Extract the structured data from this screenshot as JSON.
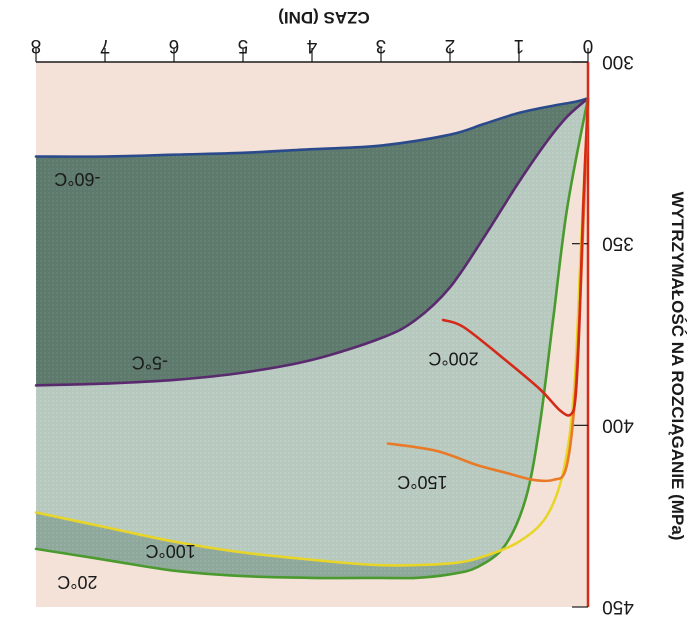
{
  "chart_data": {
    "type": "line",
    "orientation": "rotated-180",
    "xlabel": "CZAS (DNI)",
    "ylabel": "WYTRZYMAŁOŚĆ NA ROZCIĄGANIE (MPa)",
    "xlim": [
      0,
      8
    ],
    "ylim": [
      300,
      450
    ],
    "x_ticks": [
      "0",
      "1",
      "2",
      "3",
      "4",
      "5",
      "6",
      "7",
      "8"
    ],
    "y_ticks": [
      "300",
      "350",
      "400",
      "450"
    ],
    "series": [
      {
        "name": "-60°C",
        "color": "#2b4a8c",
        "points": [
          [
            0,
            310
          ],
          [
            0.2,
            311
          ],
          [
            0.5,
            312
          ],
          [
            1,
            314
          ],
          [
            1.5,
            317
          ],
          [
            2,
            320
          ],
          [
            3,
            323
          ],
          [
            4,
            324
          ],
          [
            5,
            325
          ],
          [
            6,
            325.5
          ],
          [
            7,
            326
          ],
          [
            8,
            326
          ]
        ]
      },
      {
        "name": "-5°C",
        "color": "#5a2a6e",
        "points": [
          [
            0,
            310
          ],
          [
            0.3,
            315
          ],
          [
            0.6,
            322
          ],
          [
            1,
            333
          ],
          [
            1.5,
            348
          ],
          [
            2,
            362
          ],
          [
            2.5,
            371
          ],
          [
            3,
            376
          ],
          [
            4,
            382
          ],
          [
            5,
            385.5
          ],
          [
            6,
            387.5
          ],
          [
            7,
            388.5
          ],
          [
            8,
            389
          ]
        ]
      },
      {
        "name": "200°C",
        "color": "#d42a1a",
        "points": [
          [
            0,
            310
          ],
          [
            0.07,
            340
          ],
          [
            0.12,
            370
          ],
          [
            0.18,
            392
          ],
          [
            0.25,
            397
          ],
          [
            0.4,
            396
          ],
          [
            0.7,
            390
          ],
          [
            1.2,
            382
          ],
          [
            1.8,
            373
          ],
          [
            2.1,
            371
          ]
        ]
      },
      {
        "name": "150°C",
        "color": "#e87a28",
        "points": [
          [
            0,
            310
          ],
          [
            0.1,
            360
          ],
          [
            0.2,
            395
          ],
          [
            0.32,
            412
          ],
          [
            0.5,
            415
          ],
          [
            0.8,
            415
          ],
          [
            1.2,
            413
          ],
          [
            1.6,
            411
          ],
          [
            2.2,
            407
          ],
          [
            2.9,
            405
          ]
        ]
      },
      {
        "name": "100°C",
        "color": "#e8d52a",
        "points": [
          [
            0,
            310
          ],
          [
            0.1,
            350
          ],
          [
            0.2,
            390
          ],
          [
            0.35,
            412
          ],
          [
            0.6,
            425
          ],
          [
            1,
            432
          ],
          [
            1.5,
            436
          ],
          [
            2,
            438
          ],
          [
            3,
            438.5
          ],
          [
            4,
            437
          ],
          [
            5,
            435
          ],
          [
            6,
            432
          ],
          [
            7,
            428
          ],
          [
            8,
            424
          ]
        ]
      },
      {
        "name": "20°C",
        "color": "#4a9a2e",
        "points": [
          [
            0,
            310
          ],
          [
            0.3,
            340
          ],
          [
            0.5,
            370
          ],
          [
            0.7,
            400
          ],
          [
            0.9,
            420
          ],
          [
            1.2,
            433
          ],
          [
            1.6,
            439
          ],
          [
            2,
            441
          ],
          [
            2.5,
            442
          ],
          [
            3,
            442
          ],
          [
            4,
            442
          ],
          [
            5,
            441.5
          ],
          [
            6,
            440
          ],
          [
            7,
            437
          ],
          [
            8,
            434
          ]
        ]
      }
    ]
  }
}
